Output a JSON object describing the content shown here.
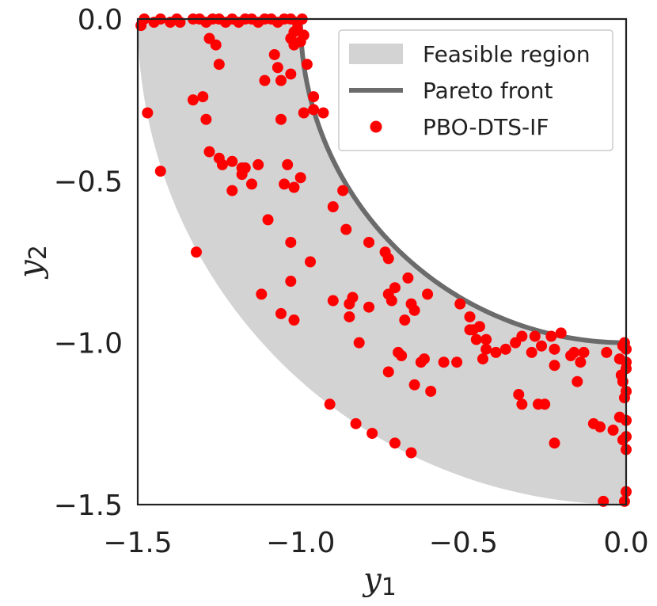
{
  "chart_data": {
    "type": "scatter",
    "title": "",
    "xlabel": {
      "main": "y",
      "sub": "1"
    },
    "ylabel": {
      "main": "y",
      "sub": "2"
    },
    "xlim": [
      -1.5,
      0.0
    ],
    "ylim": [
      -1.5,
      0.0
    ],
    "xticks": [
      -1.5,
      -1.0,
      -0.5,
      0.0
    ],
    "yticks": [
      0.0,
      -0.5,
      -1.0,
      -1.5
    ],
    "xtick_labels": [
      "−1.5",
      "−1.0",
      "−0.5",
      "0.0"
    ],
    "ytick_labels": [
      "0.0",
      "−0.5",
      "−1.0",
      "−1.5"
    ],
    "grid": false,
    "legend_position": "top-right",
    "feasible_region": {
      "name": "Feasible region",
      "inner_radius": 1.0,
      "outer_radius": 1.5,
      "color": "#d3d3d3"
    },
    "pareto_front": {
      "name": "Pareto front",
      "radius": 1.0,
      "color": "#6b6b6b"
    },
    "series": [
      {
        "name": "PBO-DTS-IF",
        "color": "#ff0000",
        "points": [
          [
            -1.49,
            -0.02
          ],
          [
            -1.48,
            0.0
          ],
          [
            -1.45,
            -0.01
          ],
          [
            -1.43,
            0.0
          ],
          [
            -1.4,
            -0.01
          ],
          [
            -1.38,
            0.0
          ],
          [
            -1.37,
            -0.01
          ],
          [
            -1.33,
            0.0
          ],
          [
            -1.31,
            0.0
          ],
          [
            -1.29,
            -0.01
          ],
          [
            -1.27,
            0.0
          ],
          [
            -1.25,
            0.0
          ],
          [
            -1.23,
            -0.01
          ],
          [
            -1.21,
            0.0
          ],
          [
            -1.19,
            -0.01
          ],
          [
            -1.17,
            0.0
          ],
          [
            -1.15,
            0.0
          ],
          [
            -1.13,
            -0.01
          ],
          [
            -1.11,
            0.0
          ],
          [
            -1.09,
            0.0
          ],
          [
            -1.07,
            -0.01
          ],
          [
            -1.05,
            0.0
          ],
          [
            -1.03,
            0.0
          ],
          [
            -1.01,
            -0.01
          ],
          [
            -0.995,
            0.0
          ],
          [
            -1.47,
            -0.29
          ],
          [
            -1.43,
            -0.47
          ],
          [
            -1.33,
            -0.25
          ],
          [
            -1.3,
            -0.24
          ],
          [
            -1.29,
            -0.31
          ],
          [
            -1.28,
            -0.41
          ],
          [
            -1.28,
            -0.06
          ],
          [
            -1.26,
            -0.08
          ],
          [
            -1.25,
            -0.14
          ],
          [
            -1.25,
            -0.43
          ],
          [
            -1.24,
            -0.45
          ],
          [
            -1.21,
            -0.44
          ],
          [
            -1.21,
            -0.53
          ],
          [
            -1.18,
            -0.48
          ],
          [
            -1.18,
            -0.46
          ],
          [
            -1.17,
            -0.46
          ],
          [
            -1.15,
            -0.51
          ],
          [
            -1.13,
            -0.45
          ],
          [
            -1.11,
            -0.19
          ],
          [
            -1.1,
            -0.62
          ],
          [
            -1.08,
            -0.11
          ],
          [
            -1.07,
            -0.15
          ],
          [
            -1.06,
            -0.19
          ],
          [
            -1.06,
            -0.31
          ],
          [
            -1.05,
            -0.51
          ],
          [
            -1.04,
            -0.45
          ],
          [
            -1.03,
            -0.17
          ],
          [
            -1.02,
            -0.04
          ],
          [
            -1.03,
            -0.06
          ],
          [
            -1.02,
            -0.08
          ],
          [
            -1.01,
            -0.03
          ],
          [
            -0.99,
            -0.05
          ],
          [
            -1.0,
            -0.07
          ],
          [
            -0.98,
            -0.14
          ],
          [
            -1.02,
            -0.52
          ],
          [
            -1.0,
            -0.49
          ],
          [
            -1.03,
            -0.69
          ],
          [
            -1.03,
            -0.81
          ],
          [
            -1.02,
            -0.93
          ],
          [
            -1.06,
            -0.91
          ],
          [
            -1.12,
            -0.85
          ],
          [
            -1.32,
            -0.72
          ],
          [
            -0.99,
            -0.29
          ],
          [
            -0.96,
            -0.24
          ],
          [
            -0.96,
            -0.28
          ],
          [
            -0.93,
            -0.29
          ],
          [
            -0.97,
            -0.75
          ],
          [
            -0.9,
            -0.58
          ],
          [
            -0.87,
            -0.53
          ],
          [
            -0.86,
            -0.65
          ],
          [
            -0.85,
            -0.88
          ],
          [
            -0.84,
            -0.86
          ],
          [
            -0.85,
            -0.92
          ],
          [
            -0.82,
            -1.0
          ],
          [
            -0.79,
            -0.69
          ],
          [
            -0.79,
            -0.89
          ],
          [
            -0.9,
            -0.87
          ],
          [
            -0.74,
            -0.72
          ],
          [
            -0.73,
            -0.74
          ],
          [
            -0.73,
            -0.85
          ],
          [
            -0.72,
            -0.87
          ],
          [
            -0.71,
            -0.83
          ],
          [
            -0.7,
            -1.03
          ],
          [
            -0.69,
            -1.04
          ],
          [
            -0.73,
            -1.09
          ],
          [
            -0.68,
            -0.93
          ],
          [
            -0.67,
            -0.8
          ],
          [
            -0.66,
            -0.88
          ],
          [
            -0.65,
            -0.9
          ],
          [
            -0.65,
            -1.13
          ],
          [
            -0.63,
            -1.06
          ],
          [
            -0.62,
            -1.05
          ],
          [
            -0.61,
            -0.85
          ],
          [
            -0.6,
            -1.15
          ],
          [
            -0.52,
            -1.06
          ],
          [
            -0.51,
            -0.88
          ],
          [
            -0.48,
            -0.92
          ],
          [
            -0.47,
            -0.96
          ],
          [
            -0.46,
            -0.99
          ],
          [
            -0.45,
            -0.95
          ],
          [
            -0.43,
            -1.02
          ],
          [
            -0.44,
            -1.05
          ],
          [
            -0.4,
            -1.03
          ],
          [
            -0.37,
            -1.02
          ],
          [
            -0.34,
            -1.0
          ],
          [
            -0.32,
            -0.98
          ],
          [
            -0.29,
            -1.03
          ],
          [
            -0.26,
            -1.01
          ],
          [
            -0.23,
            -0.98
          ],
          [
            -0.22,
            -1.07
          ],
          [
            -0.2,
            -0.97
          ],
          [
            -0.17,
            -1.04
          ],
          [
            -0.15,
            -1.12
          ],
          [
            -0.14,
            -1.06
          ],
          [
            -0.28,
            -0.98
          ],
          [
            -0.33,
            -1.16
          ],
          [
            -0.32,
            -1.19
          ],
          [
            -0.27,
            -1.19
          ],
          [
            -0.25,
            -1.19
          ],
          [
            -0.22,
            -1.31
          ],
          [
            -0.1,
            -1.25
          ],
          [
            -0.08,
            -1.26
          ],
          [
            -0.04,
            -1.27
          ],
          [
            -0.02,
            -1.23
          ],
          [
            -0.01,
            -1.01
          ],
          [
            -0.02,
            -1.05
          ],
          [
            -0.015,
            -1.1
          ],
          [
            -0.005,
            -1.0
          ],
          [
            0.0,
            -1.02
          ],
          [
            0.0,
            -1.06
          ],
          [
            0.0,
            -1.08
          ],
          [
            -0.01,
            -1.12
          ],
          [
            0.0,
            -1.15
          ],
          [
            -0.005,
            -1.17
          ],
          [
            0.0,
            -1.24
          ],
          [
            0.0,
            -1.29
          ],
          [
            -0.01,
            -1.3
          ],
          [
            0.0,
            -1.33
          ],
          [
            0.0,
            -1.46
          ],
          [
            -0.005,
            -1.49
          ],
          [
            -0.07,
            -1.49
          ],
          [
            -0.66,
            -1.34
          ],
          [
            -0.71,
            -1.31
          ],
          [
            -0.78,
            -1.28
          ],
          [
            -0.83,
            -1.25
          ],
          [
            -0.91,
            -1.19
          ],
          [
            -0.56,
            -1.06
          ],
          [
            -0.48,
            -0.96
          ],
          [
            -0.43,
            -0.99
          ],
          [
            -0.22,
            -1.02
          ],
          [
            -0.16,
            -1.03
          ],
          [
            -0.13,
            -1.03
          ],
          [
            -0.06,
            -1.03
          ]
        ]
      }
    ]
  }
}
